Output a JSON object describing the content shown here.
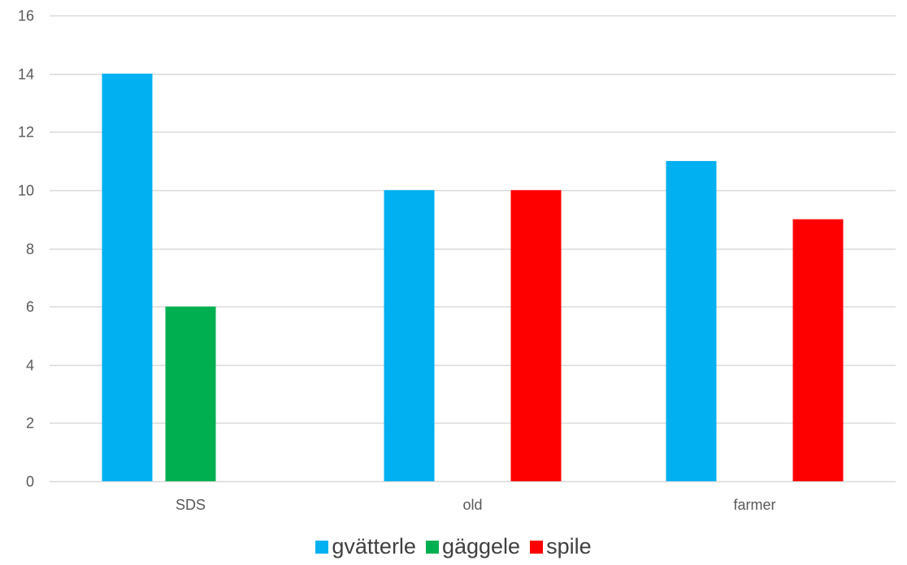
{
  "chart_data": {
    "type": "bar",
    "categories": [
      "SDS",
      "old",
      "farmer"
    ],
    "series": [
      {
        "name": "gvätterle",
        "color": "#00B0F0",
        "values": [
          14,
          10,
          11
        ]
      },
      {
        "name": "gäggele",
        "color": "#00B050",
        "values": [
          6,
          0,
          0
        ]
      },
      {
        "name": "spile",
        "color": "#FF0000",
        "values": [
          0,
          10,
          9
        ]
      }
    ],
    "yticks": [
      "0",
      "2",
      "4",
      "6",
      "8",
      "10",
      "12",
      "14",
      "16"
    ],
    "ylim": [
      0,
      16
    ],
    "grid": true,
    "legend_position": "bottom",
    "title": "",
    "xlabel": "",
    "ylabel": ""
  }
}
